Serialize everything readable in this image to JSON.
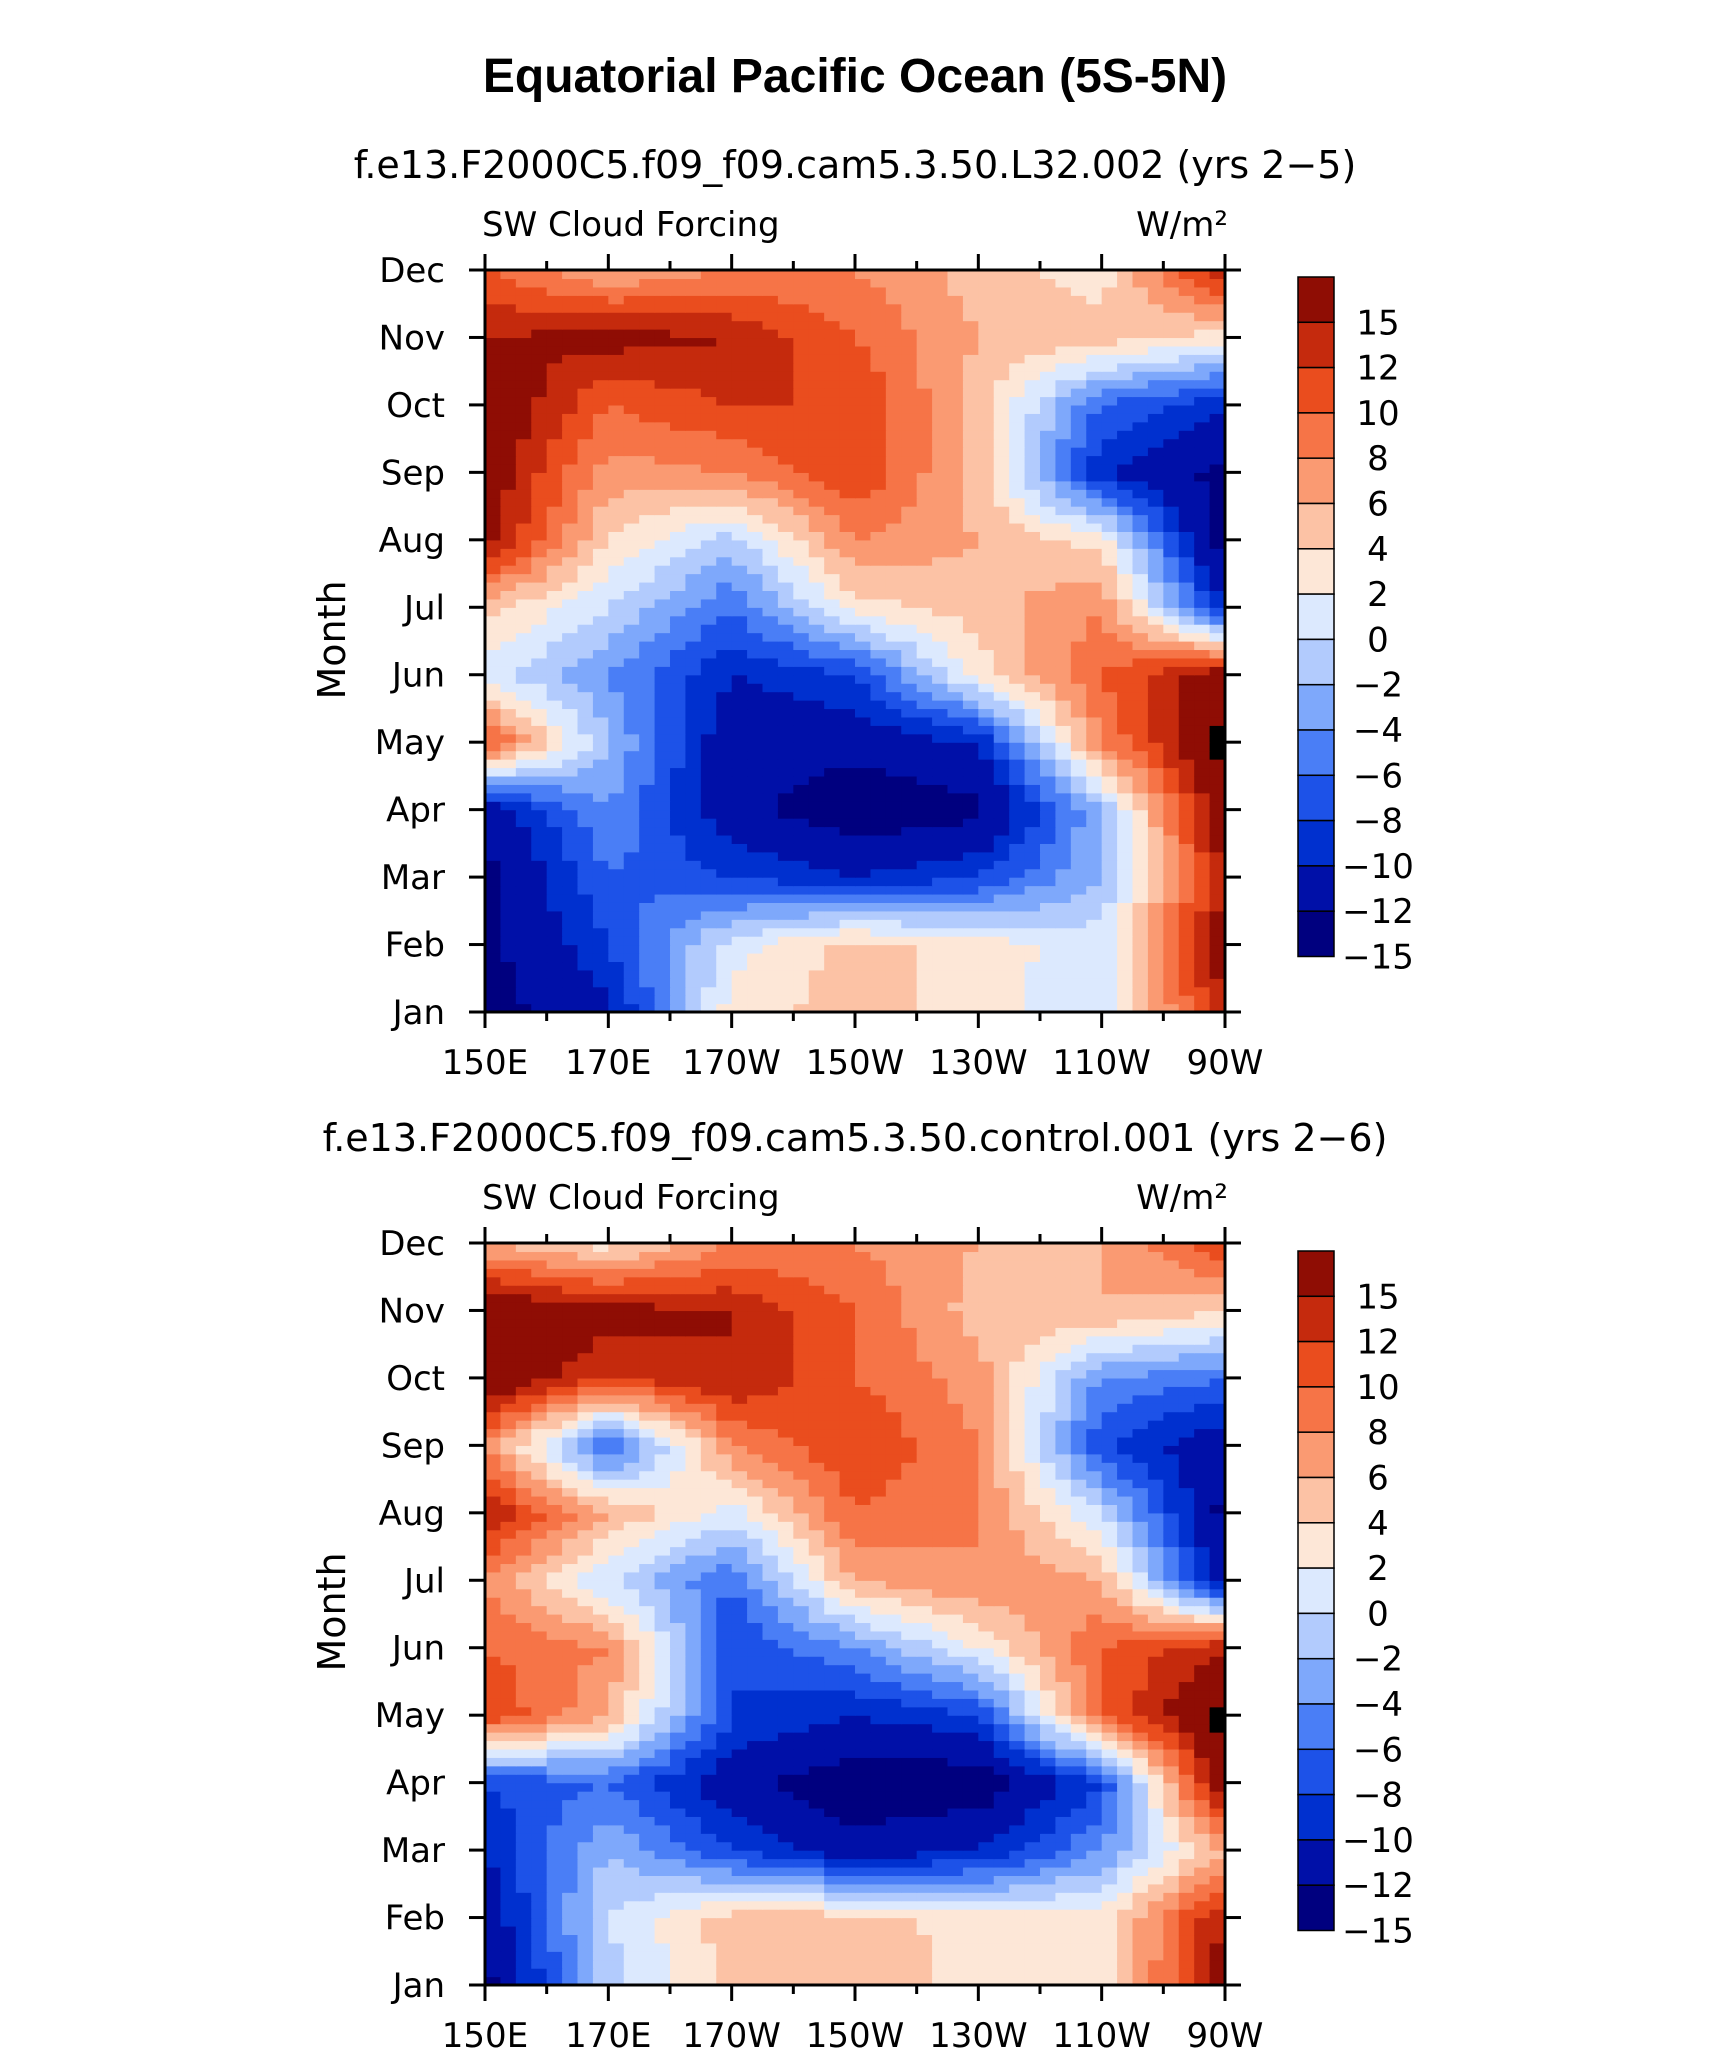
{
  "figure": {
    "title": "Equatorial Pacific Ocean (5S-5N)"
  },
  "panels": [
    {
      "run_title": "f.e13.F2000C5.f09_f09.cam5.3.50.L32.002 (yrs 2−5)",
      "left_label": "SW Cloud Forcing",
      "right_label": "W/m²",
      "ylabel": "Month"
    },
    {
      "run_title": "f.e13.F2000C5.f09_f09.cam5.3.50.control.001 (yrs 2−6)",
      "left_label": "SW Cloud Forcing",
      "right_label": "W/m²",
      "ylabel": "Month"
    }
  ],
  "chart_data": [
    {
      "type": "heatmap",
      "title": "Equatorial Pacific Ocean (5S-5N)",
      "subtitle": "f.e13.F2000C5.f09_f09.cam5.3.50.L32.002 (yrs 2−5)",
      "variable": "SW Cloud Forcing",
      "units": "W/m²",
      "xlabel": "",
      "ylabel": "Month",
      "x": [
        "150E",
        "170E",
        "170W",
        "150W",
        "130W",
        "110W",
        "90W"
      ],
      "y": [
        "Jan",
        "Feb",
        "Mar",
        "Apr",
        "May",
        "Jun",
        "Jul",
        "Aug",
        "Sep",
        "Oct",
        "Nov",
        "Dec"
      ],
      "values": [
        [
          -16,
          -13,
          1,
          3,
          1,
          -2,
          12
        ],
        [
          -16,
          -10,
          -1,
          3,
          1,
          -1,
          14
        ],
        [
          -16,
          -8,
          -10,
          -12,
          -10,
          -4,
          12
        ],
        [
          -14,
          -6,
          -14,
          -17,
          -16,
          -4,
          15
        ],
        [
          9,
          -4,
          -14,
          -14,
          -12,
          6,
          16
        ],
        [
          -1,
          -6,
          -12,
          -10,
          1,
          8,
          14
        ],
        [
          3,
          -2,
          -8,
          1,
          3,
          6,
          -12
        ],
        [
          13,
          2,
          -3,
          6,
          4,
          1,
          -17
        ],
        [
          14,
          5,
          6,
          10,
          3,
          -12,
          -16
        ],
        [
          15,
          8,
          10,
          10,
          3,
          -8,
          -12
        ],
        [
          12,
          13,
          12,
          8,
          4,
          3,
          1
        ],
        [
          8,
          4,
          6,
          6,
          3,
          1,
          12
        ]
      ],
      "levels": [
        -15,
        -12,
        -10,
        -8,
        -6,
        -4,
        -2,
        0,
        2,
        4,
        6,
        8,
        10,
        12,
        15
      ],
      "colorbar_labels": [
        "15",
        "12",
        "10",
        "8",
        "6",
        "4",
        "2",
        "0",
        "−2",
        "−4",
        "−6",
        "−8",
        "−10",
        "−12",
        "−15"
      ],
      "colors": [
        "#00007f",
        "#0010a8",
        "#0030cf",
        "#1d52e8",
        "#4a7ef6",
        "#7ea8fb",
        "#b2cbfd",
        "#dce9fe",
        "#fde7d7",
        "#fcc2a5",
        "#fa9a72",
        "#f67447",
        "#ea4d1e",
        "#c52a0d",
        "#8f0d04"
      ]
    },
    {
      "type": "heatmap",
      "title": "Equatorial Pacific Ocean (5S-5N)",
      "subtitle": "f.e13.F2000C5.f09_f09.cam5.3.50.control.001 (yrs 2−6)",
      "variable": "SW Cloud Forcing",
      "units": "W/m²",
      "xlabel": "",
      "ylabel": "Month",
      "x": [
        "150E",
        "170E",
        "170W",
        "150W",
        "130W",
        "110W",
        "90W"
      ],
      "y": [
        "Jan",
        "Feb",
        "Mar",
        "Apr",
        "May",
        "Jun",
        "Jul",
        "Aug",
        "Sep",
        "Oct",
        "Nov",
        "Dec"
      ],
      "values": [
        [
          -16,
          -3,
          3,
          4,
          1,
          0,
          14
        ],
        [
          -14,
          -2,
          3,
          3,
          1,
          1,
          12
        ],
        [
          -12,
          -4,
          -10,
          -14,
          -12,
          -6,
          4
        ],
        [
          -10,
          -8,
          -14,
          -17,
          -17,
          -10,
          15
        ],
        [
          10,
          4,
          -10,
          -12,
          -10,
          8,
          16
        ],
        [
          8,
          6,
          -10,
          -6,
          0,
          8,
          12
        ],
        [
          6,
          -2,
          -8,
          4,
          6,
          4,
          -14
        ],
        [
          12,
          4,
          -1,
          8,
          6,
          -2,
          -16
        ],
        [
          6,
          -9,
          6,
          10,
          6,
          -10,
          -14
        ],
        [
          15,
          10,
          12,
          8,
          5,
          -6,
          -8
        ],
        [
          15,
          13,
          12,
          8,
          3,
          4,
          2
        ],
        [
          4,
          1,
          6,
          6,
          4,
          4,
          10
        ]
      ],
      "levels": [
        -15,
        -12,
        -10,
        -8,
        -6,
        -4,
        -2,
        0,
        2,
        4,
        6,
        8,
        10,
        12,
        15
      ],
      "colorbar_labels": [
        "15",
        "12",
        "10",
        "8",
        "6",
        "4",
        "2",
        "0",
        "−2",
        "−4",
        "−6",
        "−8",
        "−10",
        "−12",
        "−15"
      ],
      "colors": [
        "#00007f",
        "#0010a8",
        "#0030cf",
        "#1d52e8",
        "#4a7ef6",
        "#7ea8fb",
        "#b2cbfd",
        "#dce9fe",
        "#fde7d7",
        "#fcc2a5",
        "#fa9a72",
        "#f67447",
        "#ea4d1e",
        "#c52a0d",
        "#8f0d04"
      ]
    }
  ]
}
